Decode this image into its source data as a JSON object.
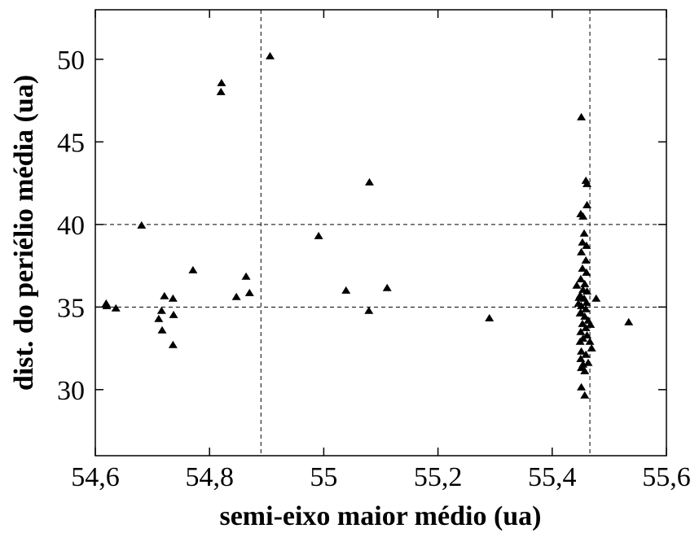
{
  "chart_data": {
    "type": "scatter",
    "x_label": "semi-eixo maior médio (ua)",
    "y_label": "dist. do periélio média (ua)",
    "xlim": [
      54.6,
      55.6
    ],
    "ylim": [
      26,
      53
    ],
    "xticks": [
      {
        "value": 54.6,
        "label": "54,6"
      },
      {
        "value": 54.8,
        "label": "54,8"
      },
      55,
      {
        "value": 55.2,
        "label": "55,2"
      },
      {
        "value": 55.4,
        "label": "55,4"
      },
      {
        "value": 55.6,
        "label": "55,6"
      }
    ],
    "yticks": [
      30,
      35,
      40,
      45,
      50
    ],
    "vlines": [
      54.89,
      55.466
    ],
    "hlines": [
      35,
      40
    ],
    "color": "#000000",
    "x": [
      54.619,
      54.62,
      54.636,
      54.681,
      54.711,
      54.716,
      54.717,
      54.721,
      54.736,
      54.737,
      54.736,
      54.771,
      54.847,
      54.864,
      54.87,
      54.82,
      54.821,
      54.906,
      54.991,
      55.039,
      55.079,
      55.08,
      55.111,
      55.29,
      55.534,
      55.477,
      55.451,
      55.459,
      55.461,
      55.461,
      55.45,
      55.454,
      55.456,
      55.453,
      55.46,
      55.451,
      55.459,
      55.453,
      55.46,
      55.45,
      55.457,
      55.443,
      55.454,
      55.461,
      55.449,
      55.456,
      55.46,
      55.451,
      55.459,
      55.45,
      55.457,
      55.463,
      55.453,
      55.459,
      55.45,
      55.461,
      55.454,
      55.466,
      55.469,
      55.451,
      55.459,
      55.45,
      55.463,
      55.454,
      55.451,
      55.457,
      55.451,
      55.457,
      55.447,
      55.446,
      55.449,
      55.467,
      55.449
    ],
    "values": [
      35.22,
      35.07,
      34.93,
      39.95,
      34.29,
      34.78,
      33.6,
      35.67,
      35.52,
      34.53,
      32.71,
      37.24,
      35.62,
      36.85,
      35.86,
      48.03,
      48.57,
      50.2,
      39.31,
      36.01,
      34.78,
      42.56,
      36.16,
      34.33,
      34.09,
      35.52,
      46.5,
      42.66,
      42.46,
      41.18,
      40.64,
      40.49,
      39.46,
      38.92,
      38.72,
      38.33,
      37.83,
      37.34,
      37.09,
      36.7,
      36.4,
      36.31,
      36.06,
      35.96,
      35.71,
      35.52,
      35.27,
      35.07,
      34.88,
      34.68,
      34.43,
      34.19,
      33.99,
      33.74,
      33.5,
      33.3,
      33.1,
      32.91,
      32.51,
      32.32,
      32.12,
      31.87,
      31.63,
      31.53,
      31.33,
      31.13,
      30.15,
      29.66,
      35.57,
      35.22,
      34.63,
      33.94,
      32.91
    ]
  }
}
